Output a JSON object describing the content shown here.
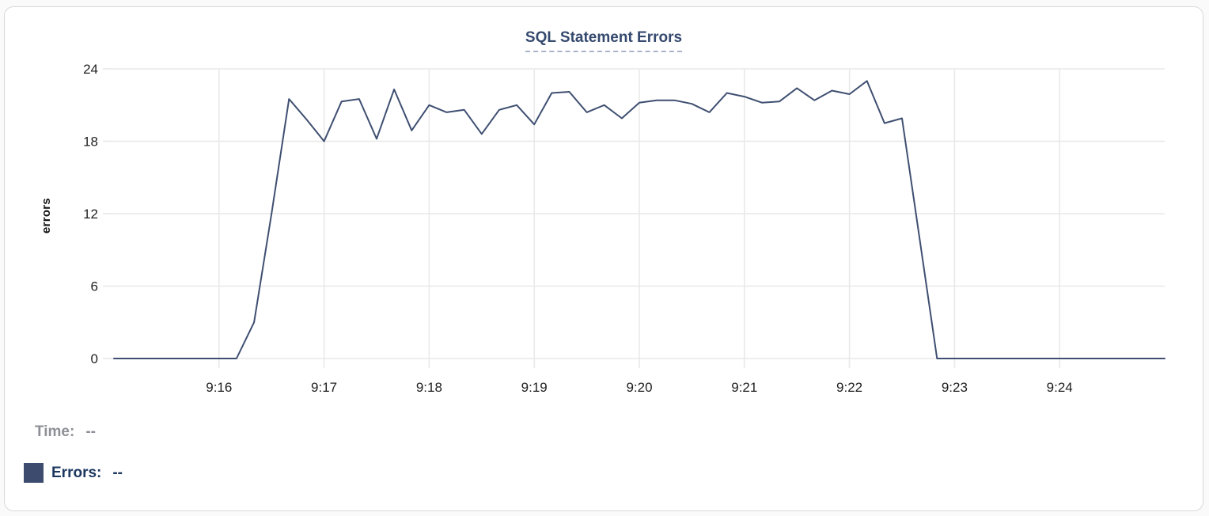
{
  "chart_data": {
    "type": "line",
    "title": "SQL Statement Errors",
    "xlabel": "",
    "ylabel": "errors",
    "ylim": [
      0,
      24
    ],
    "yticks": [
      0,
      6,
      12,
      18,
      24
    ],
    "xticks": [
      "9:16",
      "9:17",
      "9:18",
      "9:19",
      "9:20",
      "9:21",
      "9:22",
      "9:23",
      "9:24"
    ],
    "x_range": [
      "9:15:00",
      "9:25:00"
    ],
    "grid": true,
    "legend_position": "none",
    "x": [
      "9:15:00",
      "9:15:10",
      "9:15:20",
      "9:15:30",
      "9:15:40",
      "9:15:50",
      "9:16:00",
      "9:16:10",
      "9:16:20",
      "9:16:30",
      "9:16:40",
      "9:16:50",
      "9:17:00",
      "9:17:10",
      "9:17:20",
      "9:17:30",
      "9:17:40",
      "9:17:50",
      "9:18:00",
      "9:18:10",
      "9:18:20",
      "9:18:30",
      "9:18:40",
      "9:18:50",
      "9:19:00",
      "9:19:10",
      "9:19:20",
      "9:19:30",
      "9:19:40",
      "9:19:50",
      "9:20:00",
      "9:20:10",
      "9:20:20",
      "9:20:30",
      "9:20:40",
      "9:20:50",
      "9:21:00",
      "9:21:10",
      "9:21:20",
      "9:21:30",
      "9:21:40",
      "9:21:50",
      "9:22:00",
      "9:22:10",
      "9:22:20",
      "9:22:30",
      "9:22:40",
      "9:22:50",
      "9:23:00",
      "9:23:10",
      "9:23:20",
      "9:23:30",
      "9:23:40",
      "9:23:50",
      "9:24:00",
      "9:24:10",
      "9:24:20",
      "9:24:30",
      "9:24:40",
      "9:24:50",
      "9:25:00"
    ],
    "series": [
      {
        "name": "Errors",
        "color": "#3f4f71",
        "values": [
          0,
          0,
          0,
          0,
          0,
          0,
          0,
          0,
          3,
          12,
          21.5,
          19.8,
          18,
          21.3,
          21.5,
          18.2,
          22.3,
          18.9,
          21,
          20.4,
          20.6,
          18.6,
          20.6,
          21,
          19.4,
          22,
          22.1,
          20.4,
          21,
          19.9,
          21.2,
          21.4,
          21.4,
          21.1,
          20.4,
          22,
          21.7,
          21.2,
          21.3,
          22.4,
          21.4,
          22.2,
          21.9,
          23,
          19.5,
          19.9,
          10,
          0,
          0,
          0,
          0,
          0,
          0,
          0,
          0,
          0,
          0,
          0,
          0,
          0,
          0
        ]
      }
    ]
  },
  "tooltip_readout": {
    "time_label": "Time:",
    "time_value": "--",
    "errors_label": "Errors:",
    "errors_value": "--",
    "swatch_color": "#3d4c6e"
  },
  "colors": {
    "line": "#3f4f71",
    "title": "#35496e",
    "title_dash": "#a9b4c9",
    "grid": "#e8e8e8",
    "tick_mark": "#ececec",
    "tick_text": "#1f1f1f",
    "time_gray": "#8d9096",
    "errors_navy": "#1c3860",
    "card_border": "#d9d9d9",
    "card_bg": "#ffffff"
  }
}
